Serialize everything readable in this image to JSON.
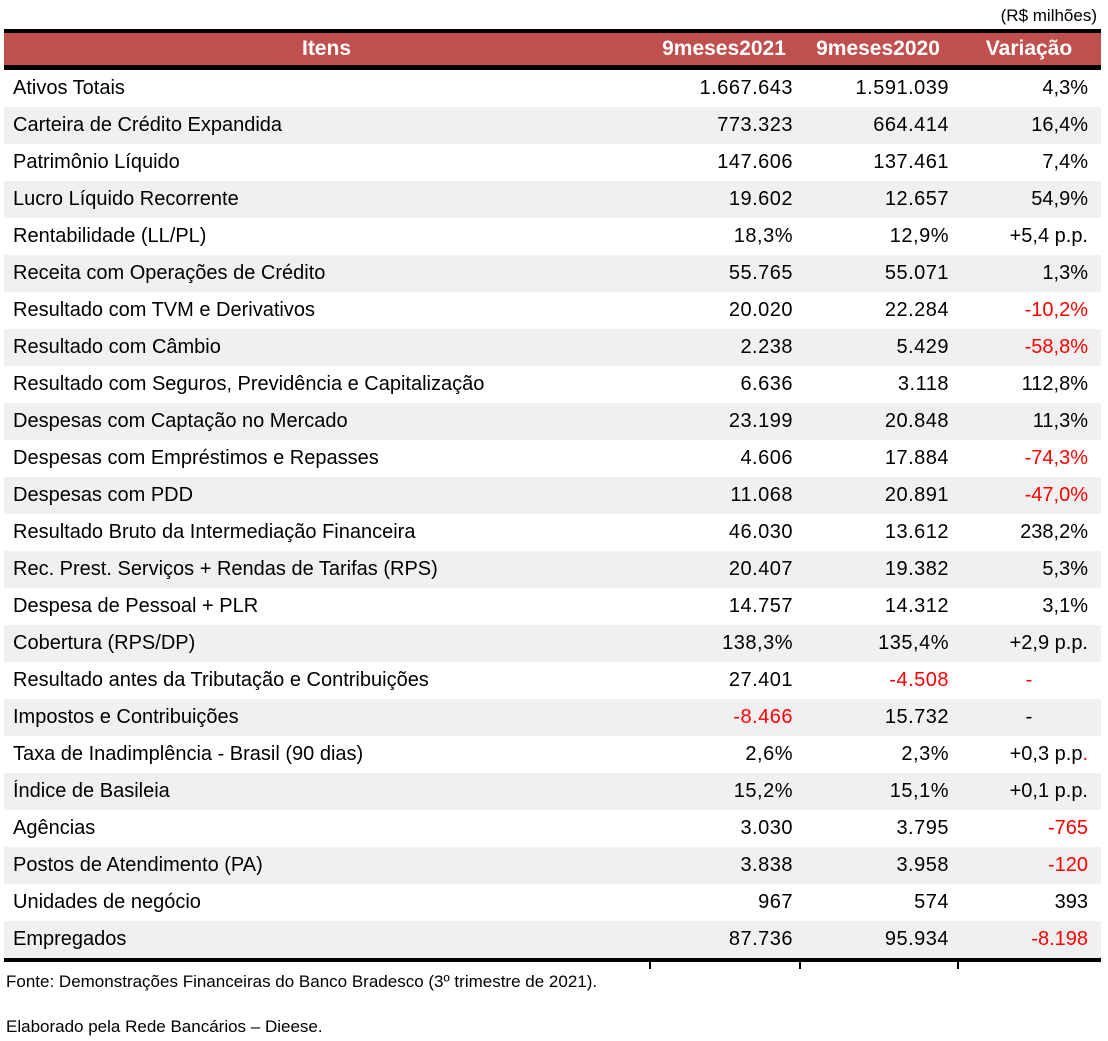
{
  "unit_note": "(R$ milhões)",
  "colors": {
    "header_bg": "#C0504D",
    "header_text": "#FFFFFF",
    "row_alt_bg": "#F0F0F0",
    "negative_text": "#FF0000",
    "text": "#000000",
    "border": "#000000"
  },
  "table": {
    "columns": [
      "Itens",
      "9meses2021",
      "9meses2020",
      "Variação"
    ],
    "rows": [
      {
        "item": "Ativos Totais",
        "y2021": "1.667.643",
        "y2020": "1.591.039",
        "variation": "4,3%"
      },
      {
        "item": "Carteira de Crédito Expandida",
        "y2021": "773.323",
        "y2020": "664.414",
        "variation": "16,4%"
      },
      {
        "item": "Patrimônio Líquido",
        "y2021": "147.606",
        "y2020": "137.461",
        "variation": "7,4%"
      },
      {
        "item": "Lucro Líquido Recorrente",
        "y2021": "19.602",
        "y2020": "12.657",
        "variation": "54,9%"
      },
      {
        "item": "Rentabilidade (LL/PL)",
        "y2021": "18,3%",
        "y2020": "12,9%",
        "variation": "+5,4 p.p."
      },
      {
        "item": "Receita com Operações de Crédito",
        "y2021": "55.765",
        "y2020": "55.071",
        "variation": "1,3%"
      },
      {
        "item": "Resultado com TVM e Derivativos",
        "y2021": "20.020",
        "y2020": "22.284",
        "variation": "-10,2%",
        "variation_red": true
      },
      {
        "item": "Resultado com Câmbio",
        "y2021": "2.238",
        "y2020": "5.429",
        "variation": "-58,8%",
        "variation_red": true
      },
      {
        "item": "Resultado com Seguros, Previdência e Capitalização",
        "y2021": "6.636",
        "y2020": "3.118",
        "variation": "112,8%"
      },
      {
        "item": "Despesas com Captação no Mercado",
        "y2021": "23.199",
        "y2020": "20.848",
        "variation": "11,3%"
      },
      {
        "item": "Despesas com Empréstimos e Repasses",
        "y2021": "4.606",
        "y2020": "17.884",
        "variation": "-74,3%",
        "variation_red": true
      },
      {
        "item": "Despesas com PDD",
        "y2021": "11.068",
        "y2020": "20.891",
        "variation": "-47,0%",
        "variation_red": true
      },
      {
        "item": "Resultado Bruto da Intermediação Financeira",
        "y2021": "46.030",
        "y2020": "13.612",
        "variation": "238,2%"
      },
      {
        "item": "Rec. Prest. Serviços + Rendas de Tarifas (RPS)",
        "y2021": "20.407",
        "y2020": "19.382",
        "variation": "5,3%"
      },
      {
        "item": "Despesa de Pessoal + PLR",
        "y2021": "14.757",
        "y2020": "14.312",
        "variation": "3,1%"
      },
      {
        "item": "Cobertura (RPS/DP)",
        "y2021": "138,3%",
        "y2020": "135,4%",
        "variation": "+2,9 p.p."
      },
      {
        "item": "Resultado antes da Tributação e Contribuições",
        "y2021": "27.401",
        "y2020": "-4.508",
        "y2020_red": true,
        "variation": "-",
        "variation_red": true,
        "variation_center": true
      },
      {
        "item": "Impostos e Contribuições",
        "y2021": "-8.466",
        "y2021_red": true,
        "y2020": "15.732",
        "variation": "-",
        "variation_center": true
      },
      {
        "item": "Taxa de Inadimplência - Brasil (90 dias)",
        "y2021": "2,6%",
        "y2020": "2,3%",
        "variation": "+0,3 p.p.",
        "variation_last_dot_red": true
      },
      {
        "item": "Índice de Basileia",
        "y2021": "15,2%",
        "y2020": "15,1%",
        "variation": "+0,1 p.p."
      },
      {
        "item": "Agências",
        "y2021": "3.030",
        "y2020": "3.795",
        "variation": "-765",
        "variation_red": true
      },
      {
        "item": "Postos de Atendimento (PA)",
        "y2021": "3.838",
        "y2020": "3.958",
        "variation": "-120",
        "variation_red": true
      },
      {
        "item": "Unidades de negócio",
        "y2021": "967",
        "y2020": "574",
        "variation": "393"
      },
      {
        "item": "Empregados",
        "y2021": "87.736",
        "y2020": "95.934",
        "variation": "-8.198",
        "variation_red": true
      }
    ]
  },
  "footer": {
    "source": "Fonte: Demonstrações Financeiras do Banco Bradesco (3º trimestre de 2021).",
    "credit": "Elaborado pela Rede Bancários – Dieese."
  }
}
